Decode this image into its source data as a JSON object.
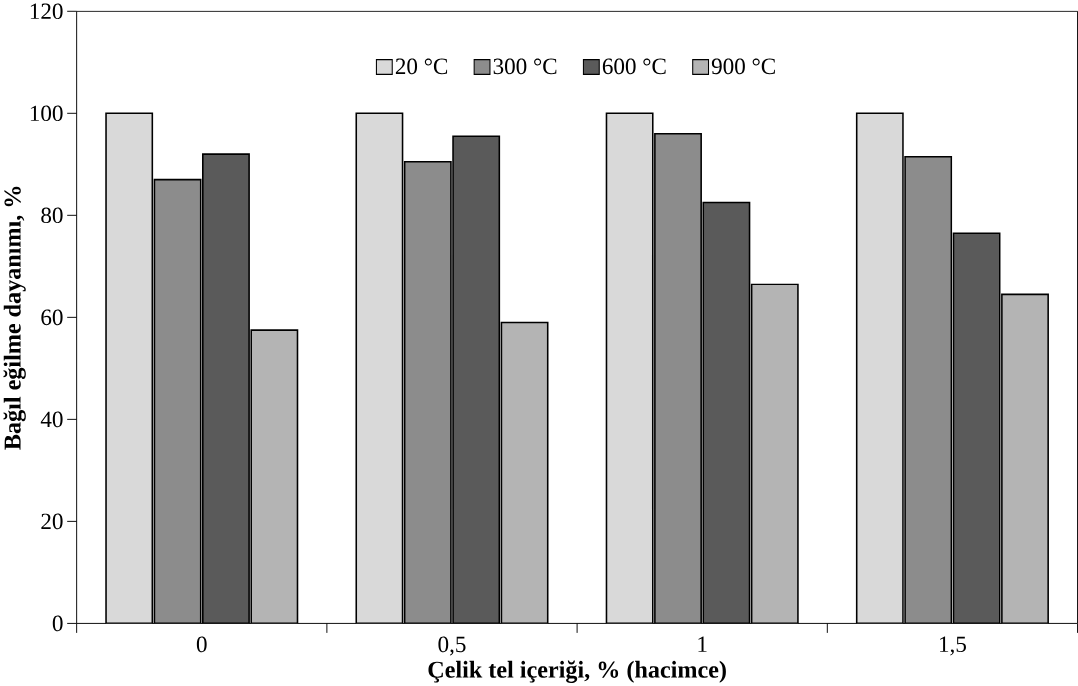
{
  "chart_data": {
    "type": "bar",
    "xlabel": "Çelik tel içeriği, % (hacimce)",
    "ylabel": "Bağıl eğilme dayanımı, %",
    "categories": [
      "0",
      "0,5",
      "1",
      "1,5"
    ],
    "series": [
      {
        "name": "20 °C",
        "color": "#d9d9d9",
        "values": [
          100,
          100,
          100,
          100
        ]
      },
      {
        "name": "300 °C",
        "color": "#8c8c8c",
        "values": [
          87,
          90.5,
          96,
          91.5
        ]
      },
      {
        "name": "600 °C",
        "color": "#5a5a5a",
        "values": [
          92,
          95.5,
          82.5,
          76.5
        ]
      },
      {
        "name": "900 °C",
        "color": "#b4b4b4",
        "values": [
          57.5,
          59,
          66.5,
          64.5
        ]
      }
    ],
    "ylim": [
      0,
      120
    ],
    "yticks": [
      0,
      20,
      40,
      60,
      80,
      100,
      120
    ],
    "legend": "top",
    "grid": false
  }
}
